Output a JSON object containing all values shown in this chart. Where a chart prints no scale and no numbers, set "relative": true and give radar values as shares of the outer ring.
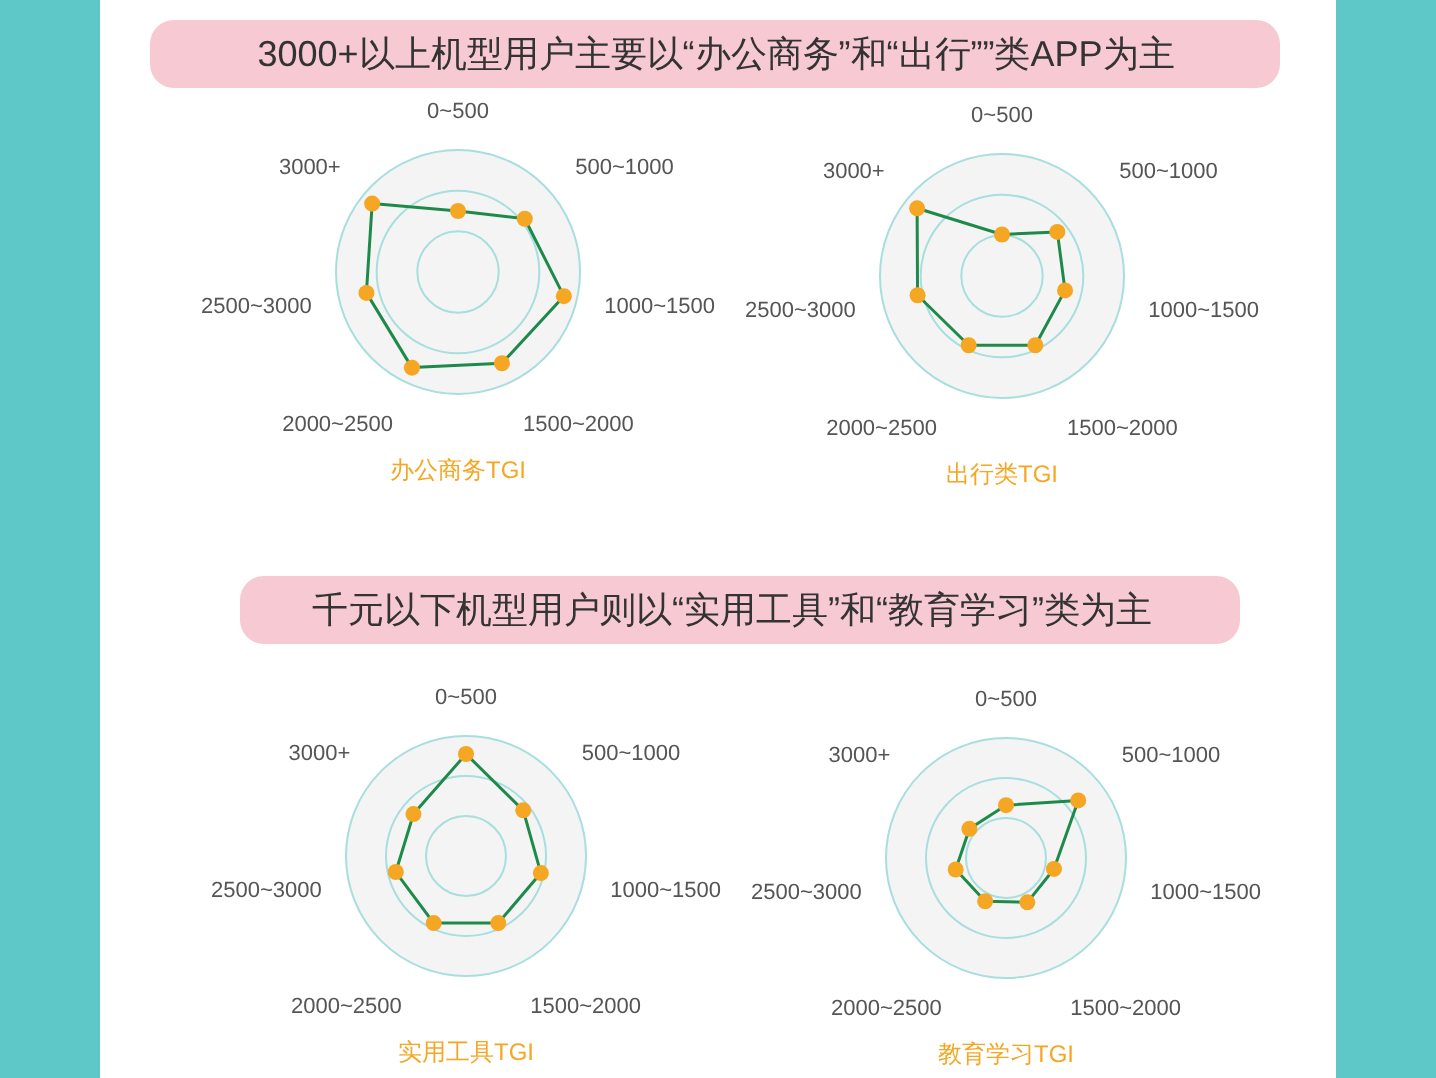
{
  "chart_data": [
    {
      "type": "radar",
      "relative": true,
      "title": "办公商务TGI",
      "annotations": [
        "3000+以上机型用户主要以“办公商务”和“出行””类APP为主"
      ],
      "marker": "circle",
      "categories": [
        "0~500",
        "500~1000",
        "1000~1500",
        "1500~2000",
        "2000~2500",
        "2500~3000",
        "3000+"
      ],
      "series": [
        {
          "color": "#1e8a4a",
          "values": [
            0.5,
            0.7,
            0.89,
            0.83,
            0.87,
            0.77,
            0.9
          ]
        }
      ]
    },
    {
      "type": "radar",
      "relative": true,
      "title": "出行类TGI",
      "marker": "circle",
      "categories": [
        "0~500",
        "500~1000",
        "1000~1500",
        "1500~2000",
        "2000~2500",
        "2500~3000",
        "3000+"
      ],
      "series": [
        {
          "color": "#1e8a4a",
          "values": [
            0.34,
            0.58,
            0.53,
            0.63,
            0.63,
            0.71,
            0.89
          ]
        }
      ]
    },
    {
      "type": "radar",
      "relative": true,
      "title": "实用工具TGI",
      "annotations": [
        "千元以下机型用户则以“实用工具”和“教育学习”类为主"
      ],
      "marker": "circle",
      "categories": [
        "0~500",
        "500~1000",
        "1000~1500",
        "1500~2000",
        "2000~2500",
        "2500~3000",
        "3000+"
      ],
      "series": [
        {
          "color": "#1e8a4a",
          "values": [
            0.85,
            0.61,
            0.64,
            0.62,
            0.62,
            0.6,
            0.56
          ]
        }
      ]
    },
    {
      "type": "radar",
      "relative": true,
      "title": "教育学习TGI",
      "marker": "circle",
      "categories": [
        "0~500",
        "500~1000",
        "1000~1500",
        "1500~2000",
        "2000~2500",
        "2500~3000",
        "3000+"
      ],
      "series": [
        {
          "color": "#1e8a4a",
          "values": [
            0.44,
            0.77,
            0.41,
            0.41,
            0.4,
            0.43,
            0.39
          ]
        }
      ]
    }
  ]
}
